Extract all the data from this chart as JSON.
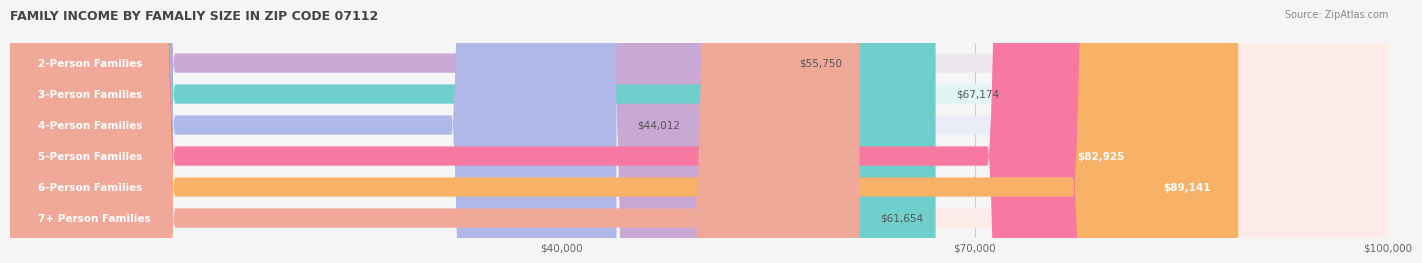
{
  "title": "FAMILY INCOME BY FAMALIY SIZE IN ZIP CODE 07112",
  "source": "Source: ZipAtlas.com",
  "categories": [
    "2-Person Families",
    "3-Person Families",
    "4-Person Families",
    "5-Person Families",
    "6-Person Families",
    "7+ Person Families"
  ],
  "values": [
    55750,
    67174,
    44012,
    82925,
    89141,
    61654
  ],
  "bar_colors": [
    "#c9a8d4",
    "#6ecfcc",
    "#b0b8e8",
    "#f778a1",
    "#f7b267",
    "#f0a899"
  ],
  "bg_colors": [
    "#ede8f0",
    "#e2f5f5",
    "#eaecf7",
    "#fce8ef",
    "#fef3e7",
    "#fdecea"
  ],
  "value_labels": [
    "$55,750",
    "$67,174",
    "$44,012",
    "$82,925",
    "$89,141",
    "$61,654"
  ],
  "label_color_inside": [
    false,
    false,
    false,
    true,
    true,
    false
  ],
  "xmin": 0,
  "xmax": 100000,
  "xticks": [
    40000,
    70000,
    100000
  ],
  "xtick_labels": [
    "$40,000",
    "$70,000",
    "$100,000"
  ],
  "background_color": "#f5f5f5",
  "bar_height": 0.62,
  "label_fontsize": 7.5,
  "title_fontsize": 9,
  "source_fontsize": 7
}
